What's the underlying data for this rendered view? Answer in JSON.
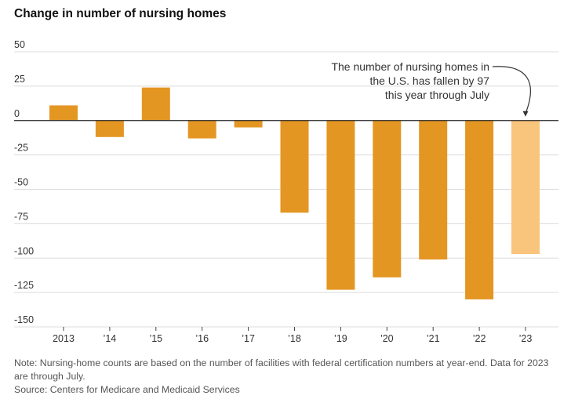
{
  "chart_data": {
    "type": "bar",
    "title": "Change in number of nursing homes",
    "categories": [
      "2013",
      "’14",
      "’15",
      "’16",
      "’17",
      "’18",
      "’19",
      "’20",
      "’21",
      "’22",
      "’23"
    ],
    "values": [
      11,
      -12,
      24,
      -13,
      -5,
      -67,
      -123,
      -114,
      -101,
      -130,
      -97
    ],
    "highlight_index": 10,
    "ylim": [
      -150,
      50
    ],
    "yticks": [
      50,
      25,
      0,
      -25,
      -50,
      -75,
      -100,
      -125,
      -150
    ],
    "xlabel": "",
    "ylabel": "",
    "grid": true,
    "colors": {
      "bar": "#e49623",
      "highlight": "#f9c47c",
      "grid": "#dcdcdc",
      "axis": "#222222"
    },
    "annotation": {
      "lines": [
        "The number of nursing homes in",
        "the U.S. has fallen by 97",
        "this year through July"
      ],
      "target_index": 10
    }
  },
  "footer": {
    "note": "Note: Nursing-home counts are based on the number of facilities with federal certification numbers at year-end. Data for 2023 are through July.",
    "source": "Source: Centers for Medicare and Medicaid Services"
  }
}
